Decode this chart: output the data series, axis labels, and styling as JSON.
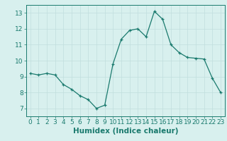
{
  "x": [
    0,
    1,
    2,
    3,
    4,
    5,
    6,
    7,
    8,
    9,
    10,
    11,
    12,
    13,
    14,
    15,
    16,
    17,
    18,
    19,
    20,
    21,
    22,
    23
  ],
  "y": [
    9.2,
    9.1,
    9.2,
    9.1,
    8.5,
    8.2,
    7.8,
    7.55,
    7.0,
    7.2,
    9.8,
    11.35,
    11.9,
    12.0,
    11.5,
    13.1,
    12.6,
    11.0,
    10.5,
    10.2,
    10.15,
    10.1,
    8.9,
    8.0
  ],
  "xlabel": "Humidex (Indice chaleur)",
  "xlim": [
    -0.5,
    23.5
  ],
  "ylim": [
    6.5,
    13.5
  ],
  "yticks": [
    7,
    8,
    9,
    10,
    11,
    12,
    13
  ],
  "xticks": [
    0,
    1,
    2,
    3,
    4,
    5,
    6,
    7,
    8,
    9,
    10,
    11,
    12,
    13,
    14,
    15,
    16,
    17,
    18,
    19,
    20,
    21,
    22,
    23
  ],
  "line_color": "#1a7a6e",
  "marker": "+",
  "bg_color": "#d8f0ee",
  "grid_color": "#c0dedd",
  "axis_color": "#1a7a6e",
  "tick_fontsize": 6.5,
  "label_fontsize": 7.5
}
